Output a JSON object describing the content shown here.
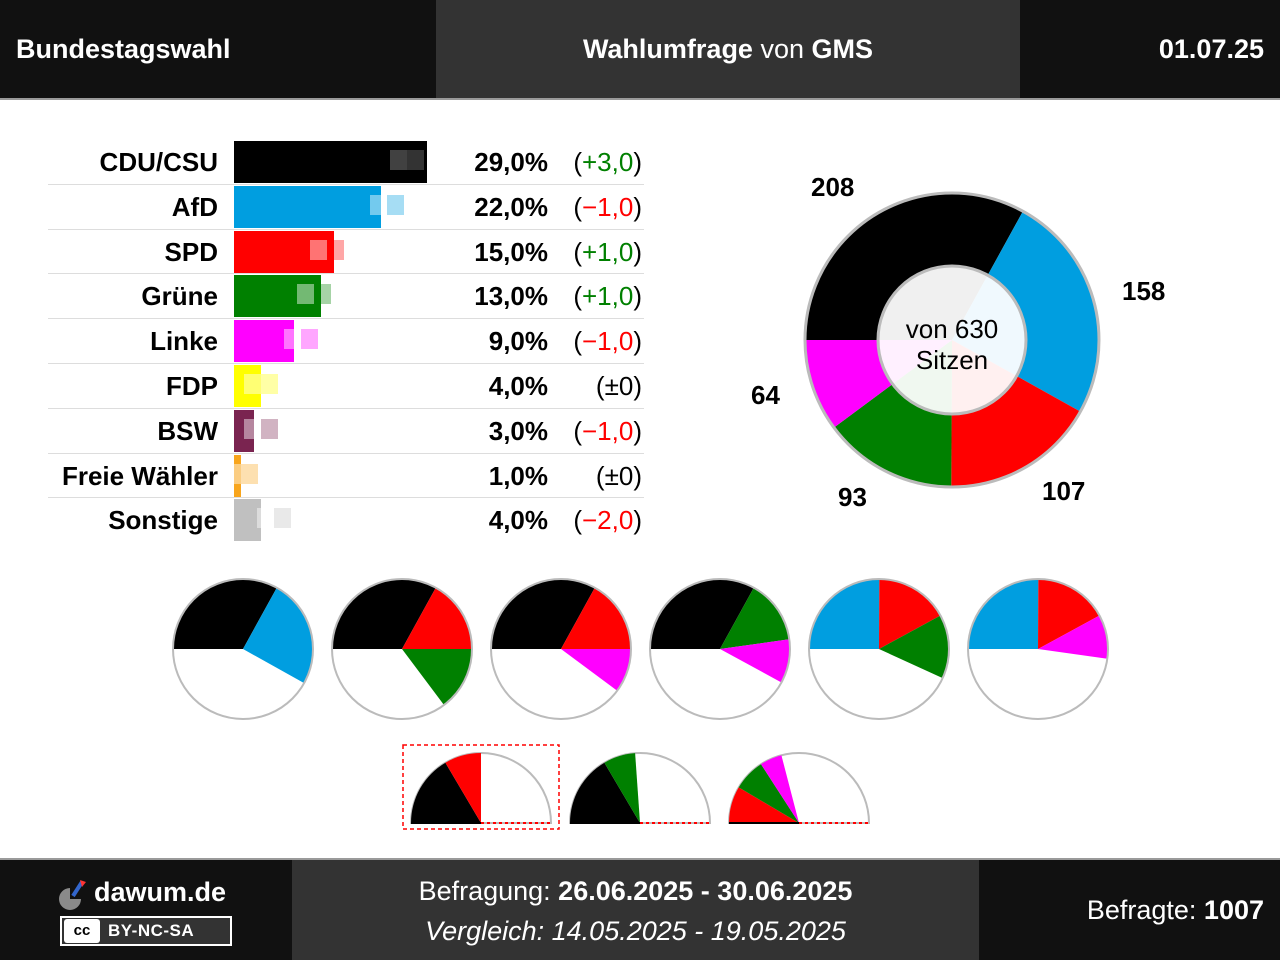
{
  "header": {
    "left_title": "Bundestagswahl",
    "center_bold1": "Wahlumfrage",
    "center_middle": "von",
    "center_bold2": "GMS",
    "date": "01.07.25"
  },
  "chart_data": [
    {
      "type": "bar",
      "orientation": "horizontal",
      "categories": [
        "CDU/CSU",
        "AfD",
        "SPD",
        "Grüne",
        "Linke",
        "FDP",
        "BSW",
        "Freie Wähler",
        "Sonstige"
      ],
      "values": [
        29.0,
        22.0,
        15.0,
        13.0,
        9.0,
        4.0,
        3.0,
        1.0,
        4.0
      ],
      "previous_values": [
        26.0,
        23.0,
        14.0,
        12.0,
        10.0,
        4.0,
        4.0,
        1.0,
        6.0
      ],
      "value_labels": [
        "29,0%",
        "22,0%",
        "15,0%",
        "13,0%",
        "9,0%",
        "4,0%",
        "3,0%",
        "1,0%",
        "4,0%"
      ],
      "diff_labels": [
        "+3,0",
        "−1,0",
        "+1,0",
        "+1,0",
        "−1,0",
        "±0",
        "−1,0",
        "±0",
        "−2,0"
      ],
      "diff_signs": [
        "pos",
        "neg",
        "pos",
        "pos",
        "neg",
        "zero",
        "neg",
        "zero",
        "neg"
      ],
      "colors": [
        "#000000",
        "#009ee0",
        "#ff0000",
        "#008000",
        "#ff00ff",
        "#ffff00",
        "#7a2450",
        "#f8a51c",
        "#c0c0c0"
      ],
      "xlim": [
        0,
        30
      ]
    },
    {
      "type": "pie",
      "variant": "donut",
      "seats_total": 630,
      "center_line1": "von 630",
      "center_line2": "Sitzen",
      "slices": [
        {
          "party": "CDU/CSU",
          "seats": 208,
          "color": "#000000"
        },
        {
          "party": "AfD",
          "seats": 158,
          "color": "#009ee0"
        },
        {
          "party": "SPD",
          "seats": 107,
          "color": "#ff0000"
        },
        {
          "party": "Grüne",
          "seats": 93,
          "color": "#008000"
        },
        {
          "party": "Linke",
          "seats": 64,
          "color": "#ff00ff"
        }
      ],
      "labels": [
        "208",
        "158",
        "107",
        "93",
        "64"
      ]
    },
    {
      "type": "pie",
      "variant": "coalitions",
      "full_circle": [
        {
          "parties": [
            {
              "seats": 208,
              "color": "#000000"
            },
            {
              "seats": 158,
              "color": "#009ee0"
            }
          ]
        },
        {
          "parties": [
            {
              "seats": 208,
              "color": "#000000"
            },
            {
              "seats": 107,
              "color": "#ff0000"
            },
            {
              "seats": 93,
              "color": "#008000"
            }
          ]
        },
        {
          "parties": [
            {
              "seats": 208,
              "color": "#000000"
            },
            {
              "seats": 107,
              "color": "#ff0000"
            },
            {
              "seats": 64,
              "color": "#ff00ff"
            }
          ]
        },
        {
          "parties": [
            {
              "seats": 208,
              "color": "#000000"
            },
            {
              "seats": 93,
              "color": "#008000"
            },
            {
              "seats": 64,
              "color": "#ff00ff"
            }
          ]
        },
        {
          "parties": [
            {
              "seats": 158,
              "color": "#009ee0"
            },
            {
              "seats": 107,
              "color": "#ff0000"
            },
            {
              "seats": 93,
              "color": "#008000"
            }
          ]
        },
        {
          "parties": [
            {
              "seats": 158,
              "color": "#009ee0"
            },
            {
              "seats": 107,
              "color": "#ff0000"
            },
            {
              "seats": 64,
              "color": "#ff00ff"
            }
          ]
        }
      ],
      "half_circle": [
        {
          "parties": [
            {
              "seats": 208,
              "color": "#000000"
            },
            {
              "seats": 107,
              "color": "#ff0000"
            }
          ],
          "highlighted": true
        },
        {
          "parties": [
            {
              "seats": 208,
              "color": "#000000"
            },
            {
              "seats": 93,
              "color": "#008000"
            }
          ],
          "highlighted": false
        },
        {
          "parties": [
            {
              "seats": 107,
              "color": "#ff0000"
            },
            {
              "seats": 93,
              "color": "#008000"
            },
            {
              "seats": 64,
              "color": "#ff00ff"
            }
          ],
          "highlighted": false
        }
      ]
    }
  ],
  "footer": {
    "brand": "dawum.de",
    "license_cc": "cc",
    "license": "BY-NC-SA",
    "survey_label": "Befragung: ",
    "survey_dates": "26.06.2025 - 30.06.2025",
    "compare_label": "Vergleich: ",
    "compare_dates": "14.05.2025 - 19.05.2025",
    "respondents_label": "Befragte: ",
    "respondents": "1007"
  }
}
